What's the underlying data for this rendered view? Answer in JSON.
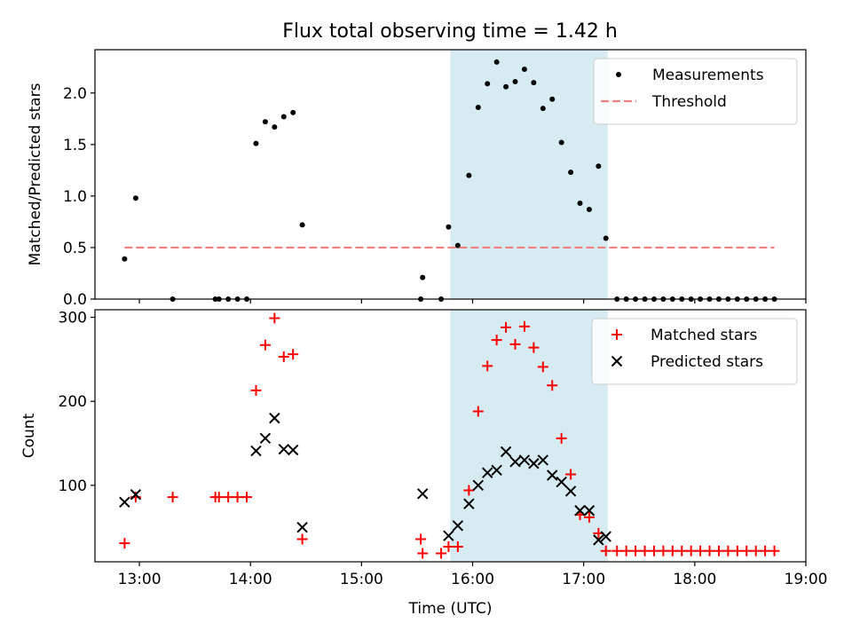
{
  "figure": {
    "title": "Flux total observing time = 1.42 h"
  },
  "colors": {
    "shade": "#add8e6",
    "threshold": "#f08080",
    "matched": "#ff0000",
    "predicted": "#000000",
    "measurement": "#000000"
  },
  "chart_data": [
    {
      "type": "scatter",
      "title": "Flux total observing time = 1.42 h",
      "ylabel": "Matched/Predicted stars",
      "xlabel": "",
      "xlim": [
        "12:36",
        "19:00"
      ],
      "ylim": [
        0,
        2.42
      ],
      "yticks": [
        "0.0",
        "0.5",
        "1.0",
        "1.5",
        "2.0"
      ],
      "legend_position": "top-right",
      "shaded_interval": [
        "15:48",
        "17:13"
      ],
      "series": [
        {
          "name": "Measurements",
          "marker": "dot",
          "points": [
            [
              "12:52",
              0.39
            ],
            [
              "12:58",
              0.98
            ],
            [
              "13:18",
              0.0
            ],
            [
              "13:41",
              0.0
            ],
            [
              "13:43",
              0.0
            ],
            [
              "13:48",
              0.0
            ],
            [
              "13:53",
              0.0
            ],
            [
              "13:58",
              0.0
            ],
            [
              "14:03",
              1.51
            ],
            [
              "14:08",
              1.72
            ],
            [
              "14:13",
              1.67
            ],
            [
              "14:18",
              1.77
            ],
            [
              "14:23",
              1.81
            ],
            [
              "14:28",
              0.72
            ],
            [
              "15:32",
              0.0
            ],
            [
              "15:33",
              0.21
            ],
            [
              "15:43",
              0.0
            ],
            [
              "15:47",
              0.7
            ],
            [
              "15:52",
              0.52
            ],
            [
              "15:58",
              1.2
            ],
            [
              "16:03",
              1.86
            ],
            [
              "16:08",
              2.09
            ],
            [
              "16:13",
              2.3
            ],
            [
              "16:18",
              2.06
            ],
            [
              "16:23",
              2.11
            ],
            [
              "16:28",
              2.23
            ],
            [
              "16:33",
              2.1
            ],
            [
              "16:38",
              1.85
            ],
            [
              "16:43",
              1.94
            ],
            [
              "16:48",
              1.52
            ],
            [
              "16:53",
              1.23
            ],
            [
              "16:58",
              0.93
            ],
            [
              "17:03",
              0.87
            ],
            [
              "17:08",
              1.29
            ],
            [
              "17:12",
              0.59
            ],
            [
              "17:18",
              0.0
            ],
            [
              "17:23",
              0.0
            ],
            [
              "17:28",
              0.0
            ],
            [
              "17:33",
              0.0
            ],
            [
              "17:38",
              0.0
            ],
            [
              "17:43",
              0.0
            ],
            [
              "17:48",
              0.0
            ],
            [
              "17:53",
              0.0
            ],
            [
              "17:58",
              0.0
            ],
            [
              "18:03",
              0.0
            ],
            [
              "18:08",
              0.0
            ],
            [
              "18:13",
              0.0
            ],
            [
              "18:18",
              0.0
            ],
            [
              "18:23",
              0.0
            ],
            [
              "18:28",
              0.0
            ],
            [
              "18:33",
              0.0
            ],
            [
              "18:38",
              0.0
            ],
            [
              "18:43",
              0.0
            ]
          ]
        },
        {
          "name": "Threshold",
          "type": "line",
          "style": "dashed",
          "points": [
            [
              "12:52",
              0.5
            ],
            [
              "18:43",
              0.5
            ]
          ]
        }
      ]
    },
    {
      "type": "scatter",
      "title": "",
      "ylabel": "Count",
      "xlabel": "Time (UTC)",
      "xlim": [
        "12:36",
        "19:00"
      ],
      "ylim": [
        9,
        309
      ],
      "yticks": [
        "100",
        "200",
        "300"
      ],
      "xticks": [
        "13:00",
        "14:00",
        "15:00",
        "16:00",
        "17:00",
        "18:00",
        "19:00"
      ],
      "legend_position": "top-right",
      "shaded_interval": [
        "15:48",
        "17:13"
      ],
      "series": [
        {
          "name": "Matched stars",
          "marker": "plus",
          "points": [
            [
              "12:52",
              31
            ],
            [
              "12:58",
              86
            ],
            [
              "13:18",
              86
            ],
            [
              "13:41",
              86
            ],
            [
              "13:43",
              86
            ],
            [
              "13:48",
              86
            ],
            [
              "13:53",
              86
            ],
            [
              "13:58",
              86
            ],
            [
              "14:03",
              213
            ],
            [
              "14:08",
              267
            ],
            [
              "14:13",
              299
            ],
            [
              "14:18",
              253
            ],
            [
              "14:23",
              256
            ],
            [
              "14:28",
              36
            ],
            [
              "15:32",
              36
            ],
            [
              "15:33",
              19
            ],
            [
              "15:43",
              19
            ],
            [
              "15:47",
              27
            ],
            [
              "15:52",
              27
            ],
            [
              "15:58",
              94
            ],
            [
              "16:03",
              188
            ],
            [
              "16:08",
              242
            ],
            [
              "16:13",
              273
            ],
            [
              "16:18",
              288
            ],
            [
              "16:23",
              268
            ],
            [
              "16:28",
              289
            ],
            [
              "16:33",
              264
            ],
            [
              "16:38",
              241
            ],
            [
              "16:43",
              219
            ],
            [
              "16:48",
              156
            ],
            [
              "16:53",
              113
            ],
            [
              "16:58",
              65
            ],
            [
              "17:03",
              62
            ],
            [
              "17:08",
              43
            ],
            [
              "17:12",
              22
            ],
            [
              "17:18",
              22
            ],
            [
              "17:23",
              22
            ],
            [
              "17:28",
              22
            ],
            [
              "17:33",
              22
            ],
            [
              "17:38",
              22
            ],
            [
              "17:43",
              22
            ],
            [
              "17:48",
              22
            ],
            [
              "17:53",
              22
            ],
            [
              "17:58",
              22
            ],
            [
              "18:03",
              22
            ],
            [
              "18:08",
              22
            ],
            [
              "18:13",
              22
            ],
            [
              "18:18",
              22
            ],
            [
              "18:23",
              22
            ],
            [
              "18:28",
              22
            ],
            [
              "18:33",
              22
            ],
            [
              "18:38",
              22
            ],
            [
              "18:43",
              22
            ]
          ]
        },
        {
          "name": "Predicted stars",
          "marker": "x",
          "points": [
            [
              "12:52",
              80
            ],
            [
              "12:58",
              89
            ],
            [
              "14:03",
              141
            ],
            [
              "14:08",
              156
            ],
            [
              "14:13",
              180
            ],
            [
              "14:18",
              143
            ],
            [
              "14:23",
              142
            ],
            [
              "14:28",
              50
            ],
            [
              "15:33",
              90
            ],
            [
              "15:47",
              40
            ],
            [
              "15:52",
              52
            ],
            [
              "15:58",
              78
            ],
            [
              "16:03",
              100
            ],
            [
              "16:08",
              115
            ],
            [
              "16:13",
              118
            ],
            [
              "16:18",
              140
            ],
            [
              "16:23",
              128
            ],
            [
              "16:28",
              130
            ],
            [
              "16:33",
              126
            ],
            [
              "16:38",
              130
            ],
            [
              "16:43",
              112
            ],
            [
              "16:48",
              104
            ],
            [
              "16:53",
              93
            ],
            [
              "16:58",
              70
            ],
            [
              "17:03",
              70
            ],
            [
              "17:08",
              35
            ],
            [
              "17:12",
              39
            ]
          ]
        }
      ]
    }
  ]
}
